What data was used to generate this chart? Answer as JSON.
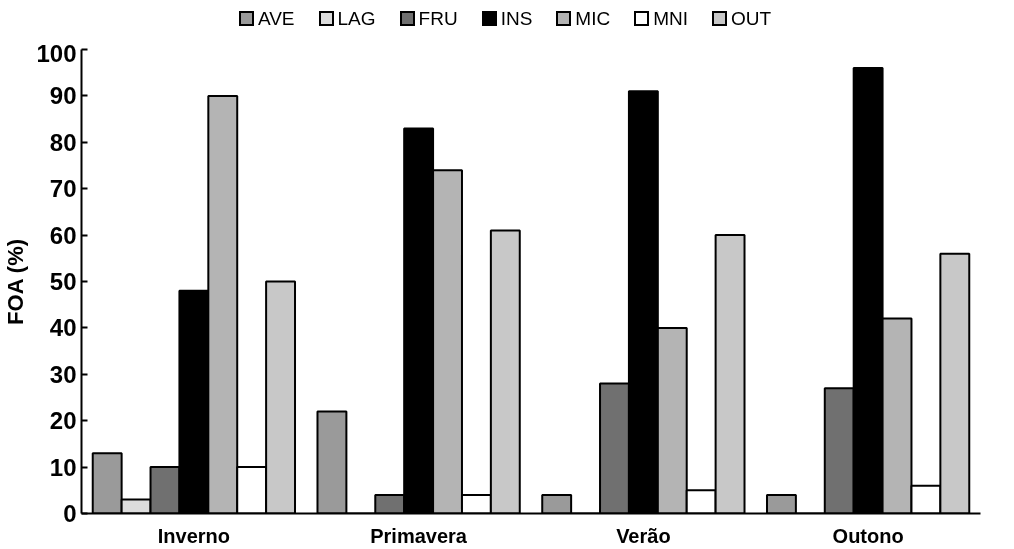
{
  "chart_data": {
    "type": "bar",
    "ylabel": "FOA (%)",
    "categories": [
      "Inverno",
      "Primavera",
      "Verão",
      "Outono"
    ],
    "series": [
      {
        "name": "AVE",
        "color": "#9a9a9a",
        "values": [
          13,
          22,
          4,
          4
        ]
      },
      {
        "name": "LAG",
        "color": "#dcdcdc",
        "values": [
          3,
          0,
          0,
          0
        ]
      },
      {
        "name": "FRU",
        "color": "#707070",
        "values": [
          10,
          4,
          28,
          27
        ]
      },
      {
        "name": "INS",
        "color": "#000000",
        "values": [
          48,
          83,
          91,
          96
        ]
      },
      {
        "name": "MIC",
        "color": "#b4b4b4",
        "values": [
          90,
          74,
          40,
          42
        ]
      },
      {
        "name": "MNI",
        "color": "#ffffff",
        "values": [
          10,
          4,
          5,
          6
        ]
      },
      {
        "name": "OUT",
        "color": "#c8c8c8",
        "values": [
          50,
          61,
          60,
          56
        ]
      }
    ],
    "ylim": [
      0,
      100
    ],
    "yticks": [
      0,
      10,
      20,
      30,
      40,
      50,
      60,
      70,
      80,
      90,
      100
    ],
    "grid": false,
    "legend": "top"
  }
}
